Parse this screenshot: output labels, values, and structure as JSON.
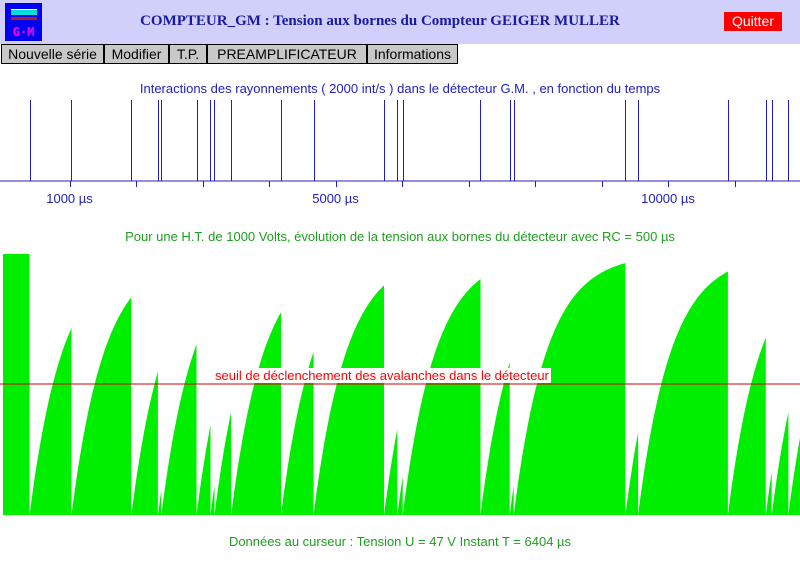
{
  "window": {
    "title": "COMPTEUR_GM : Tension aux bornes du Compteur GEIGER MULLER",
    "logo_text": "G·M",
    "logo_icon": "gm-counter-logo-icon",
    "quit_label": "Quitter"
  },
  "menu": {
    "items": [
      {
        "label": "Nouvelle série"
      },
      {
        "label": "Modifier"
      },
      {
        "label": "T.P."
      },
      {
        "label": "PREAMPLIFICATEUR"
      },
      {
        "label": "Informations"
      }
    ]
  },
  "interactions": {
    "caption": "Interactions des rayonnements ( 2000 int/s ) dans le détecteur G.M. , en fonction du temps",
    "tick_labels": [
      "1000 µs",
      "5000 µs",
      "10000 µs"
    ]
  },
  "voltage": {
    "caption": "Pour une H.T. de  1000 Volts, évolution de la tension aux bornes du détecteur avec RC = 500 µs",
    "threshold_label": "seuil de déclenchement des avalanches dans le détecteur"
  },
  "cursor": {
    "readout": "Données au curseur : Tension  U = 47 V     Instant  T = 6404 µs"
  },
  "colors": {
    "title_bar": "#d0d0fa",
    "title_text": "#1a1aa0",
    "quit_button": "#ff0000",
    "pulse_lines": "#2020c0",
    "voltage_fill": "#00ee00",
    "caption_green": "#1e9e1e",
    "threshold": "#cc0000"
  },
  "chart_data": [
    {
      "type": "scatter",
      "title": "Interactions des rayonnements ( 2000 int/s ) dans le détecteur G.M. , en fonction du temps",
      "xlabel": "",
      "ylabel": "",
      "x_ticks": [
        1000,
        5000,
        10000
      ],
      "x_tick_labels": [
        "1000 µs",
        "5000 µs",
        "10000 µs"
      ],
      "xlim": [
        0,
        12000
      ],
      "interaction_times_us": [
        400,
        1030,
        1930,
        2330,
        2380,
        2910,
        3120,
        3180,
        3430,
        4180,
        4670,
        5730,
        5930,
        6010,
        7180,
        7620,
        7680,
        9360,
        9550,
        10900,
        11470,
        11560,
        11810
      ]
    },
    {
      "type": "area",
      "title": "Pour une H.T. de  1000 Volts, évolution de la tension aux bornes du détecteur avec RC = 500 µs",
      "xlabel": "",
      "ylabel": "",
      "HT_volts": 1000,
      "RC_us": 500,
      "xlim": [
        0,
        12000
      ],
      "threshold_label": "seuil de déclenchement des avalanches dans le détecteur",
      "cursor": {
        "voltage_V": 47,
        "time_us": 6404
      }
    }
  ]
}
